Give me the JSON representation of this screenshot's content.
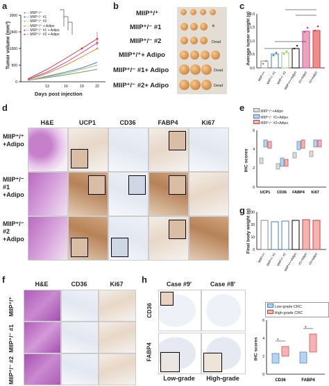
{
  "panels": {
    "a": "a",
    "b": "b",
    "c": "c",
    "d": "d",
    "e": "e",
    "f": "f",
    "g": "g",
    "h": "h"
  },
  "panel_a": {
    "ylabel": "Tumor volume (mm³)",
    "xlabel": "Days post injection",
    "legend": [
      "MIIP⁺/⁺",
      "MIIP⁺/⁻ #1",
      "MIIP⁺/⁻ #2",
      "MIIP⁺/⁺ + Adipo",
      "MIIP⁺/⁻ #1 + Adipo",
      "MIIP⁺/⁻ #2 + Adipo"
    ],
    "legend_colors": [
      "#8a8a8a",
      "#3f7fc4",
      "#9fc85a",
      "#ea8a3a",
      "#cc3fb0",
      "#d53a3a"
    ]
  },
  "panel_b": {
    "rows": [
      "MIIP⁺/⁺",
      "MIIP⁺/⁻ #1",
      "MIIP⁺/⁻ #2",
      "MIIP⁺/⁺+ Adipo",
      "MIIP⁺/⁻ #1+ Adipo",
      "MIIP⁺/⁻ #2+ Adipo"
    ],
    "dead": "Dead",
    "x_mark": "×"
  },
  "panel_c": {
    "ylabel": "Average tumor weight (g)"
  },
  "panel_d": {
    "columns": [
      "H&E",
      "UCP1",
      "CD36",
      "FABP4",
      "Ki67"
    ],
    "rows": [
      "MIIP⁺/⁺ +Adipo",
      "MIIP⁺/⁻ #1 +Adipo",
      "MIIP⁺/⁻ #2 +Adipo"
    ]
  },
  "panel_e": {
    "ylabel": "IHC scores",
    "legend": [
      "MIIP⁺/⁺+Adipo",
      "MIIP⁺/⁻ #1+Adipo",
      "MIIP⁺/⁻ #2+Adipo"
    ],
    "categories": [
      "UCP1",
      "CD36",
      "FABP4",
      "Ki67"
    ]
  },
  "panel_f": {
    "columns": [
      "H&E",
      "CD36",
      "Ki67"
    ],
    "rows": [
      "MIIP⁺/⁺",
      "MIIP⁺/⁻ #1",
      "MIIP⁺/⁻ #2"
    ]
  },
  "panel_g": {
    "ylabel": "Final body weight (g)"
  },
  "panel_h": {
    "cases": [
      "Case #9'",
      "Case #8'"
    ],
    "rows": [
      "CD36",
      "FABP4"
    ],
    "grades": [
      "Low-grade",
      "High-grade"
    ],
    "ylabel": "IHC scores",
    "legend": [
      "Low-grade CRC",
      "High-grade CRC"
    ],
    "categories": [
      "CD36",
      "FABP4"
    ],
    "star": "*"
  },
  "colors": {
    "gray": "#8a8a8a",
    "blue": "#3f7fc4",
    "green": "#9fc85a",
    "orange": "#ea8a3a",
    "magenta": "#cc3fb0",
    "red": "#d53a3a"
  }
}
